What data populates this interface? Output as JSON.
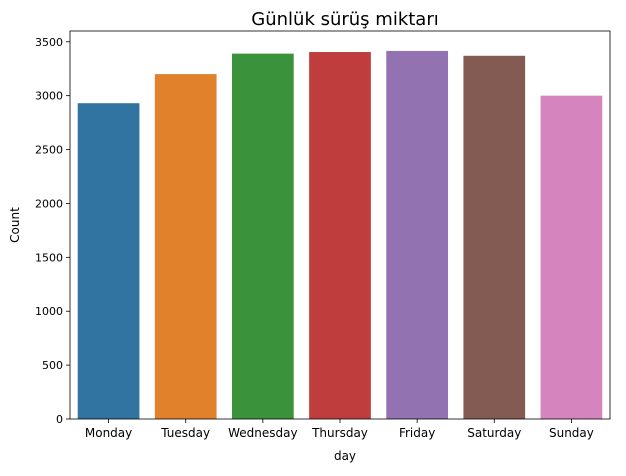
{
  "chart_data": {
    "type": "bar",
    "title": "Günlük sürüş miktarı",
    "xlabel": "day",
    "ylabel": "Count",
    "categories": [
      "Monday",
      "Tuesday",
      "Wednesday",
      "Thursday",
      "Friday",
      "Saturday",
      "Sunday"
    ],
    "values": [
      2930,
      3200,
      3390,
      3405,
      3415,
      3370,
      3000
    ],
    "colors": [
      "#3274a1",
      "#e1812c",
      "#3a923a",
      "#c03d3e",
      "#9372b2",
      "#845b53",
      "#d684bd"
    ],
    "ylim": [
      0,
      3600
    ],
    "yticks": [
      0,
      500,
      1000,
      1500,
      2000,
      2500,
      3000,
      3500
    ],
    "grid": false,
    "legend": "none"
  }
}
